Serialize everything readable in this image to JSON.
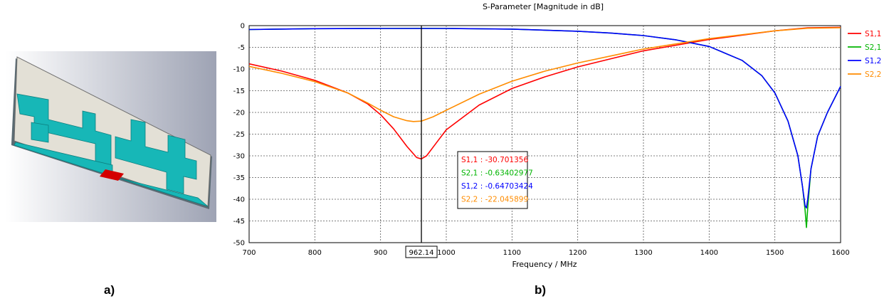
{
  "panel_labels": {
    "a": "a)",
    "b": "b)"
  },
  "chart_data": {
    "type": "line",
    "title": "S-Parameter [Magnitude in dB]",
    "xlabel": "Frequency / MHz",
    "ylabel": "",
    "xlim": [
      700,
      1600
    ],
    "ylim": [
      -50,
      0
    ],
    "x_ticks": [
      700,
      800,
      900,
      1000,
      1100,
      1200,
      1300,
      1400,
      1500,
      1600
    ],
    "y_ticks": [
      0,
      -5,
      -10,
      -15,
      -20,
      -25,
      -30,
      -35,
      -40,
      -45,
      -50
    ],
    "grid": true,
    "legend_position": "right",
    "marker": {
      "x": 962.14,
      "x_label": "962.14",
      "readouts": [
        {
          "text": "S1,1 : -30.701356",
          "color": "#ff0000"
        },
        {
          "text": "S2,1 : -0.63402977",
          "color": "#00b400"
        },
        {
          "text": "S1,2 : -0.64703424",
          "color": "#0000ff"
        },
        {
          "text": "S2,2 : -22.045899",
          "color": "#ff8c00"
        }
      ]
    },
    "series": [
      {
        "name": "S1,1",
        "color": "#ff0000",
        "points": [
          [
            700,
            -8.8
          ],
          [
            750,
            -10.5
          ],
          [
            800,
            -12.6
          ],
          [
            850,
            -15.5
          ],
          [
            880,
            -18.0
          ],
          [
            900,
            -20.5
          ],
          [
            920,
            -23.8
          ],
          [
            940,
            -27.8
          ],
          [
            955,
            -30.4
          ],
          [
            962,
            -30.7
          ],
          [
            970,
            -30.0
          ],
          [
            985,
            -27.0
          ],
          [
            1000,
            -24.0
          ],
          [
            1050,
            -18.3
          ],
          [
            1100,
            -14.5
          ],
          [
            1150,
            -11.8
          ],
          [
            1200,
            -9.5
          ],
          [
            1300,
            -5.8
          ],
          [
            1400,
            -3.2
          ],
          [
            1500,
            -1.2
          ],
          [
            1550,
            -0.5
          ],
          [
            1600,
            -0.4
          ]
        ]
      },
      {
        "name": "S2,1",
        "color": "#00b400",
        "points": [
          [
            700,
            -0.9
          ],
          [
            800,
            -0.7
          ],
          [
            900,
            -0.65
          ],
          [
            962,
            -0.63
          ],
          [
            1000,
            -0.65
          ],
          [
            1100,
            -0.8
          ],
          [
            1200,
            -1.3
          ],
          [
            1250,
            -1.7
          ],
          [
            1300,
            -2.3
          ],
          [
            1350,
            -3.3
          ],
          [
            1400,
            -4.8
          ],
          [
            1450,
            -8.0
          ],
          [
            1480,
            -11.5
          ],
          [
            1500,
            -15.5
          ],
          [
            1520,
            -22.0
          ],
          [
            1535,
            -30.0
          ],
          [
            1542,
            -37.0
          ],
          [
            1546,
            -42.5
          ],
          [
            1548,
            -46.5
          ],
          [
            1550,
            -42.0
          ],
          [
            1555,
            -33.0
          ],
          [
            1565,
            -25.5
          ],
          [
            1580,
            -20.0
          ],
          [
            1600,
            -14.0
          ]
        ]
      },
      {
        "name": "S1,2",
        "color": "#0000ff",
        "points": [
          [
            700,
            -0.9
          ],
          [
            800,
            -0.7
          ],
          [
            900,
            -0.65
          ],
          [
            962,
            -0.65
          ],
          [
            1000,
            -0.66
          ],
          [
            1100,
            -0.8
          ],
          [
            1200,
            -1.3
          ],
          [
            1250,
            -1.7
          ],
          [
            1300,
            -2.3
          ],
          [
            1350,
            -3.3
          ],
          [
            1400,
            -4.8
          ],
          [
            1450,
            -8.0
          ],
          [
            1480,
            -11.5
          ],
          [
            1500,
            -15.5
          ],
          [
            1520,
            -22.0
          ],
          [
            1535,
            -30.0
          ],
          [
            1542,
            -37.0
          ],
          [
            1546,
            -41.5
          ],
          [
            1548,
            -42.0
          ],
          [
            1550,
            -40.0
          ],
          [
            1555,
            -33.0
          ],
          [
            1565,
            -25.5
          ],
          [
            1580,
            -20.0
          ],
          [
            1600,
            -14.0
          ]
        ]
      },
      {
        "name": "S2,2",
        "color": "#ff8c00",
        "points": [
          [
            700,
            -9.4
          ],
          [
            750,
            -11.0
          ],
          [
            800,
            -12.9
          ],
          [
            850,
            -15.5
          ],
          [
            880,
            -17.8
          ],
          [
            900,
            -19.5
          ],
          [
            920,
            -21.0
          ],
          [
            940,
            -21.9
          ],
          [
            950,
            -22.1
          ],
          [
            962,
            -22.0
          ],
          [
            980,
            -21.0
          ],
          [
            1000,
            -19.5
          ],
          [
            1050,
            -15.8
          ],
          [
            1100,
            -12.8
          ],
          [
            1150,
            -10.5
          ],
          [
            1200,
            -8.6
          ],
          [
            1300,
            -5.4
          ],
          [
            1400,
            -3.0
          ],
          [
            1500,
            -1.2
          ],
          [
            1550,
            -0.6
          ],
          [
            1600,
            -0.5
          ]
        ]
      }
    ]
  }
}
